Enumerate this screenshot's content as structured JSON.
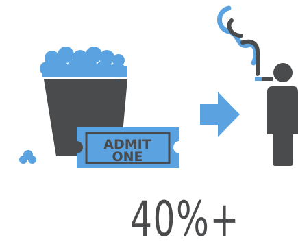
{
  "ticket": {
    "line1": "ADMIT",
    "line2": "ONE"
  },
  "stat": "40%+",
  "colors": {
    "blue": "#5aa3e0",
    "dark": "#4a4b4d",
    "white": "#ffffff"
  },
  "icons": [
    "popcorn-bucket-icon",
    "admit-one-ticket-icon",
    "arrow-right-icon",
    "smoking-person-icon"
  ]
}
